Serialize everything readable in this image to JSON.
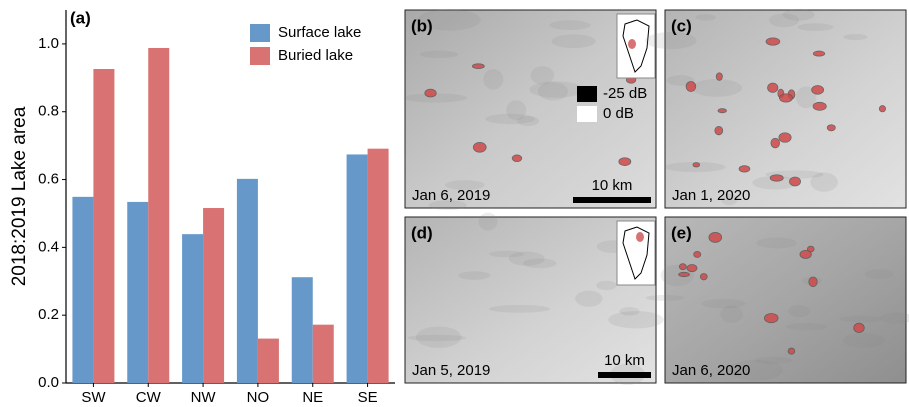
{
  "chart_data": {
    "type": "bar",
    "panel_label": "(a)",
    "y_label": "2018:2019 Lake area",
    "categories": [
      "SW",
      "CW",
      "NW",
      "NO",
      "NE",
      "SE"
    ],
    "series": [
      {
        "name": "Surface lake",
        "color": "#6699c9",
        "values": [
          0.549,
          0.534,
          0.439,
          0.602,
          0.312,
          0.674
        ]
      },
      {
        "name": "Buried lake",
        "color": "#d97272",
        "values": [
          0.926,
          0.988,
          0.516,
          0.131,
          0.172,
          0.691
        ]
      }
    ],
    "ylim": [
      0,
      1.1
    ],
    "yticks": [
      {
        "value": 0,
        "label": "0.0"
      },
      0.2,
      0.4,
      0.6,
      0.8,
      {
        "value": 1,
        "label": "1.0"
      }
    ],
    "legend": "top-right"
  },
  "image_panels": [
    {
      "label": "(b)",
      "date": "Jan 6, 2019",
      "scale": "10 km"
    },
    {
      "label": "(c)",
      "date": "Jan 1, 2020"
    },
    {
      "label": "(d)",
      "date": "Jan 5, 2019",
      "scale": "10 km"
    },
    {
      "label": "(e)",
      "date": "Jan 6, 2020"
    }
  ],
  "colorbar": {
    "min_label": "-25 dB",
    "max_label": "0 dB"
  }
}
